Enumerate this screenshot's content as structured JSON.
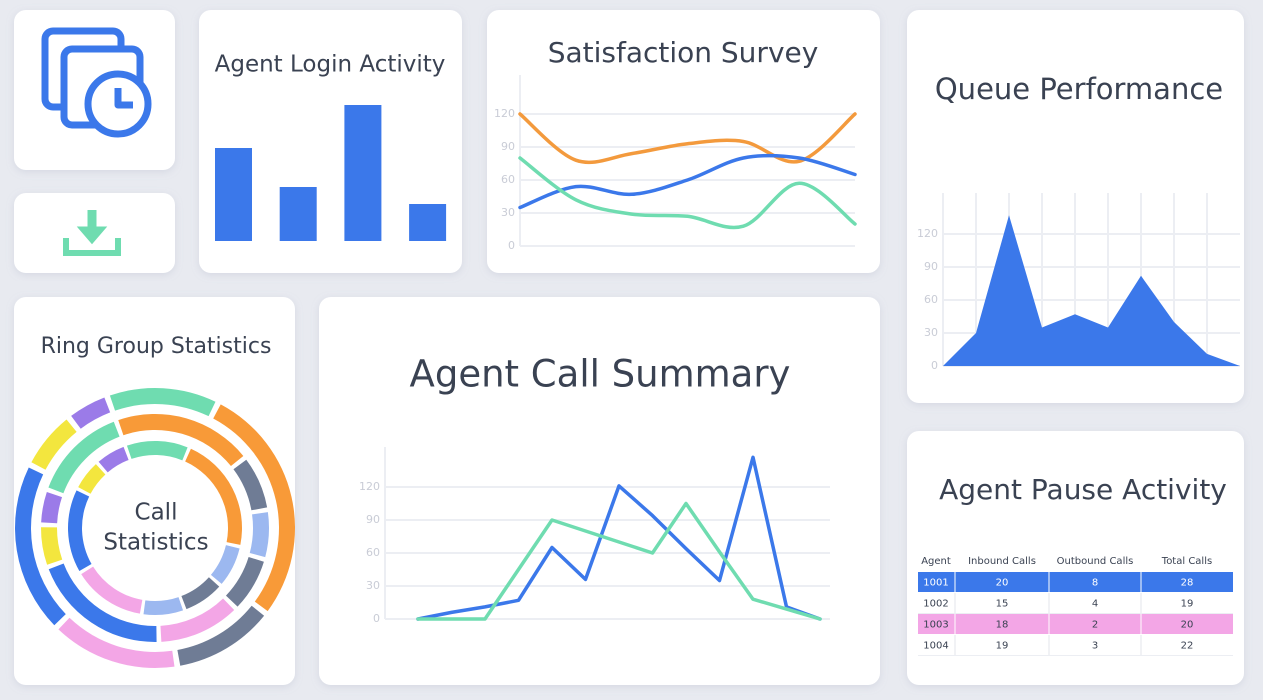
{
  "chart_data": [
    {
      "type": "bar",
      "title": "Agent Login Activity",
      "values": [
        93,
        54,
        136,
        37
      ],
      "color": "#3b78ea",
      "ylim": [
        0,
        140
      ]
    },
    {
      "type": "line",
      "title": "Satisfaction Survey",
      "ylim": [
        0,
        140
      ],
      "yticks": [
        0,
        30,
        60,
        90,
        120
      ],
      "grid": true,
      "smooth": true,
      "series": [
        {
          "color": "#f39a3d",
          "values": [
            120,
            78,
            84,
            93,
            95,
            77,
            120
          ]
        },
        {
          "color": "#3b78ea",
          "values": [
            35,
            54,
            47,
            60,
            80,
            80,
            65
          ]
        },
        {
          "color": "#6fdcb0",
          "values": [
            80,
            42,
            29,
            27,
            18,
            57,
            20
          ]
        }
      ]
    },
    {
      "type": "area",
      "title": "Queue Performance",
      "ylim": [
        0,
        150
      ],
      "yticks": [
        0,
        30,
        60,
        90,
        120
      ],
      "grid": true,
      "color": "#3b78ea",
      "values": [
        0,
        30,
        137,
        35,
        47,
        35,
        82,
        40,
        11,
        0
      ]
    },
    {
      "type": "donut",
      "title": "Ring Group Statistics",
      "center_label": [
        "Call",
        "Statistics"
      ],
      "rings": [
        {
          "values": [
            13,
            28,
            12,
            15,
            20,
            7,
            5
          ],
          "colors": [
            "#6fdcb0",
            "#f89a38",
            "#6f7c95",
            "#f3a6e6",
            "#3b78ea",
            "#f3e63e",
            "#9b7be8"
          ]
        },
        {
          "values": [
            20,
            8,
            7,
            8,
            12,
            20,
            6,
            5,
            14
          ],
          "colors": [
            "#f89a38",
            "#6f7c95",
            "#9cb8f0",
            "#6f7c95",
            "#f3a6e6",
            "#3b78ea",
            "#f3e63e",
            "#9b7be8",
            "#6fdcb0"
          ]
        },
        {
          "values": [
            12,
            22,
            8,
            8,
            8,
            14,
            16,
            6,
            6
          ],
          "colors": [
            "#6fdcb0",
            "#f89a38",
            "#9cb8f0",
            "#6f7c95",
            "#9cb8f0",
            "#f3a6e6",
            "#3b78ea",
            "#f3e63e",
            "#9b7be8"
          ]
        }
      ]
    },
    {
      "type": "line",
      "title": "Agent Call Summary",
      "ylim": [
        0,
        150
      ],
      "yticks": [
        0,
        30,
        60,
        90,
        120
      ],
      "grid": true,
      "smooth": false,
      "series": [
        {
          "color": "#3b78ea",
          "values": [
            0,
            6,
            11,
            17,
            65,
            36,
            121,
            94,
            64,
            35,
            147,
            11,
            0
          ]
        },
        {
          "color": "#6fdcb0",
          "values": [
            0,
            0,
            0,
            45,
            90,
            80,
            70,
            60,
            105,
            61,
            18,
            9,
            0
          ]
        }
      ]
    }
  ],
  "table": {
    "title": "Agent Pause Activity",
    "header": [
      "Agent",
      "Inbound Calls",
      "Outbound Calls",
      "Total Calls"
    ],
    "rows": [
      [
        "1001",
        "20",
        "8",
        "28"
      ],
      [
        "1002",
        "15",
        "4",
        "19"
      ],
      [
        "1003",
        "18",
        "2",
        "20"
      ],
      [
        "1004",
        "19",
        "3",
        "22"
      ]
    ]
  }
}
